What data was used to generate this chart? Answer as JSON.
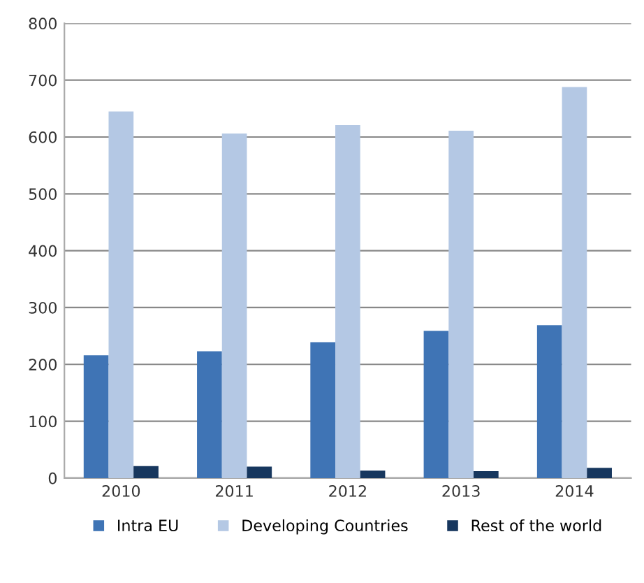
{
  "chart_data": {
    "type": "bar",
    "categories": [
      "2010",
      "2011",
      "2012",
      "2013",
      "2014"
    ],
    "series": [
      {
        "name": "Intra EU",
        "color": "#3f74b5",
        "values": [
          216,
          223,
          239,
          259,
          269
        ]
      },
      {
        "name": "Developing Countries",
        "color": "#b4c8e4",
        "values": [
          645,
          606,
          621,
          611,
          688
        ]
      },
      {
        "name": "Rest of the world",
        "color": "#17375e",
        "values": [
          21,
          20,
          13,
          12,
          18
        ]
      }
    ],
    "ylim": [
      0,
      800
    ],
    "yticks": [
      0,
      100,
      200,
      300,
      400,
      500,
      600,
      700,
      800
    ],
    "grid": "y",
    "legend": "bottom"
  }
}
